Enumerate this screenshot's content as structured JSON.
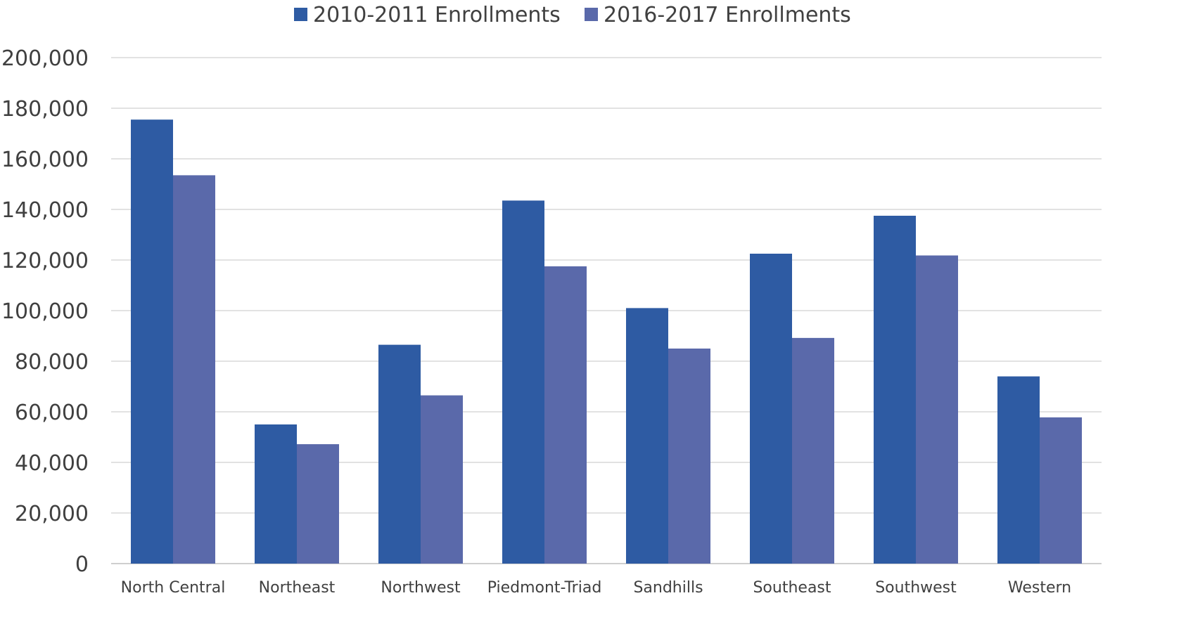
{
  "chart_data": {
    "type": "bar",
    "title": "",
    "xlabel": "",
    "ylabel": "",
    "categories": [
      "North Central",
      "Northeast",
      "Northwest",
      "Piedmont-Triad",
      "Sandhills",
      "Southeast",
      "Southwest",
      "Western"
    ],
    "series": [
      {
        "name": "2010-2011 Enrollments",
        "color": "#2e5ba3",
        "values": [
          175500,
          55000,
          86500,
          143500,
          101000,
          122500,
          137500,
          74000
        ]
      },
      {
        "name": "2016-2017 Enrollments",
        "color": "#5a69aa",
        "values": [
          153500,
          47200,
          66500,
          117500,
          85000,
          89200,
          121800,
          57800
        ]
      }
    ],
    "ylim": [
      0,
      200000
    ],
    "yticks": [
      0,
      20000,
      40000,
      60000,
      80000,
      100000,
      120000,
      140000,
      160000,
      180000,
      200000
    ],
    "ytick_labels": [
      "0",
      "20,000",
      "40,000",
      "60,000",
      "80,000",
      "100,000",
      "120,000",
      "140,000",
      "160,000",
      "180,000",
      "200,000"
    ],
    "grid": true,
    "gridline_color": "#d9d9d9",
    "legend_position": "top-center"
  }
}
